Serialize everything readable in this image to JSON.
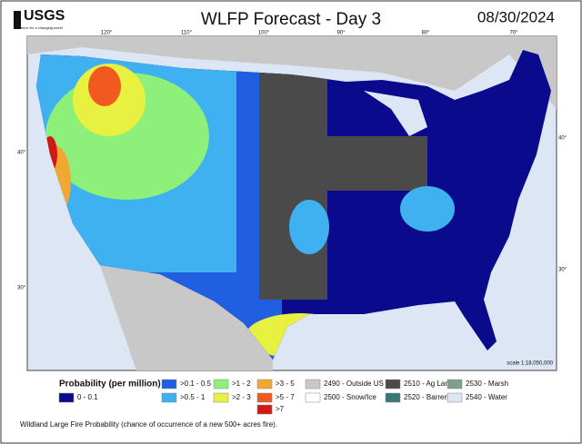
{
  "header": {
    "logo": "USGS",
    "tagline": "science for a changing world",
    "title": "WLFP Forecast - Day 3",
    "date": "08/30/2024"
  },
  "map": {
    "longitude_labels": [
      "120°",
      "110°",
      "100°",
      "90°",
      "80°",
      "70°"
    ],
    "latitude_labels_left": [
      "40°",
      "30°"
    ],
    "latitude_labels_right": [
      "40°",
      "30°"
    ],
    "scale": "scale 1:18,050,000"
  },
  "legend": {
    "title": "Probability (per million)",
    "items": [
      {
        "label": "0 - 0.1",
        "color": "#0a0a8c"
      },
      {
        "label": ">0.1 - 0.5",
        "color": "#1f5fe0"
      },
      {
        "label": ">0.5 - 1",
        "color": "#3fb0f0"
      },
      {
        "label": ">1 - 2",
        "color": "#8cf07a"
      },
      {
        "label": ">2 - 3",
        "color": "#e8f040"
      },
      {
        "label": ">3 - 5",
        "color": "#f0a830"
      },
      {
        "label": ">5 - 7",
        "color": "#f05a1e"
      },
      {
        "label": ">7",
        "color": "#d01818"
      },
      {
        "label": "2490 - Outside US",
        "color": "#c8c8c8"
      },
      {
        "label": "2500 - Snow/Ice",
        "color": "#ffffff"
      },
      {
        "label": "2510 - Ag Land",
        "color": "#4a4a4a"
      },
      {
        "label": "2520 - Barren",
        "color": "#3a7878"
      },
      {
        "label": "2530 - Marsh",
        "color": "#7fa088"
      },
      {
        "label": "2540 - Water",
        "color": "#dce6f4"
      }
    ]
  },
  "footer": "Wildland Large Fire Probability (chance of occurrence of a new 500+ acres fire)."
}
